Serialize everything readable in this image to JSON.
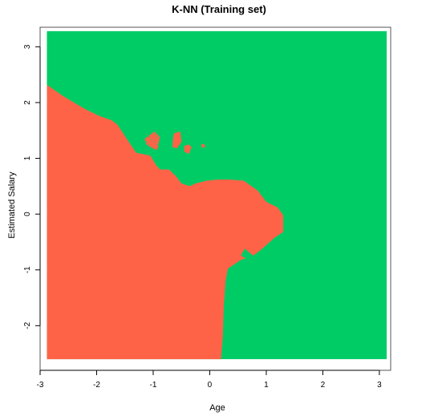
{
  "chart_data": {
    "type": "area",
    "title": "K-NN (Training set)",
    "xlabel": "Age",
    "ylabel": "Estimated Salary",
    "xlim": [
      -3,
      3.2
    ],
    "ylim": [
      -2.8,
      3.35
    ],
    "grid_extent": {
      "x": [
        -2.88,
        3.13
      ],
      "y": [
        -2.6,
        3.28
      ]
    },
    "xticks": [
      -3,
      -2,
      -1,
      0,
      1,
      2,
      3
    ],
    "yticks": [
      -2,
      -1,
      0,
      1,
      2,
      3
    ],
    "grid": false,
    "legend": "none",
    "colors": {
      "class_0": "#FF6347",
      "class_1": "#00CC66",
      "island_speckle": "#5FA85F"
    },
    "regions": [
      {
        "name": "class-0-region",
        "class": 0,
        "polygon": [
          [
            -2.88,
            2.32
          ],
          [
            -2.6,
            2.12
          ],
          [
            -2.2,
            1.88
          ],
          [
            -1.95,
            1.76
          ],
          [
            -1.73,
            1.68
          ],
          [
            -1.63,
            1.6
          ],
          [
            -1.45,
            1.32
          ],
          [
            -1.3,
            1.1
          ],
          [
            -1.05,
            1.05
          ],
          [
            -0.95,
            0.88
          ],
          [
            -0.88,
            0.8
          ],
          [
            -0.72,
            0.8
          ],
          [
            -0.6,
            0.68
          ],
          [
            -0.5,
            0.55
          ],
          [
            -0.35,
            0.5
          ],
          [
            -0.25,
            0.55
          ],
          [
            -0.05,
            0.6
          ],
          [
            0.15,
            0.62
          ],
          [
            0.35,
            0.62
          ],
          [
            0.6,
            0.6
          ],
          [
            0.85,
            0.42
          ],
          [
            1.0,
            0.22
          ],
          [
            1.2,
            0.12
          ],
          [
            1.3,
            -0.02
          ],
          [
            1.3,
            -0.32
          ],
          [
            1.15,
            -0.42
          ],
          [
            0.93,
            -0.62
          ],
          [
            0.75,
            -0.76
          ],
          [
            0.55,
            -0.82
          ],
          [
            0.32,
            -0.98
          ],
          [
            0.28,
            -1.2
          ],
          [
            0.25,
            -1.6
          ],
          [
            0.23,
            -2.2
          ],
          [
            0.2,
            -2.6
          ],
          [
            -2.88,
            -2.6
          ]
        ]
      },
      {
        "name": "class-1-notch",
        "class": 1,
        "polygon": [
          [
            0.62,
            -0.62
          ],
          [
            0.8,
            -0.77
          ],
          [
            0.72,
            -0.85
          ],
          [
            0.55,
            -0.74
          ]
        ]
      },
      {
        "name": "class-0-island-large",
        "class": 0,
        "polygon": [
          [
            -0.63,
            1.45
          ],
          [
            -0.52,
            1.48
          ],
          [
            -0.5,
            1.3
          ],
          [
            -0.58,
            1.18
          ],
          [
            -0.66,
            1.2
          ],
          [
            -0.65,
            1.35
          ]
        ]
      },
      {
        "name": "class-0-island-mid",
        "class": 0,
        "polygon": [
          [
            -0.45,
            1.22
          ],
          [
            -0.38,
            1.25
          ],
          [
            -0.32,
            1.2
          ],
          [
            -0.37,
            1.08
          ],
          [
            -0.45,
            1.12
          ]
        ]
      },
      {
        "name": "class-0-island-small",
        "class": 0,
        "polygon": [
          [
            -0.15,
            1.25
          ],
          [
            -0.1,
            1.26
          ],
          [
            -0.08,
            1.2
          ],
          [
            -0.14,
            1.19
          ]
        ]
      },
      {
        "name": "class-0-island-speckled",
        "class": 0,
        "polygon": [
          [
            -1.15,
            1.35
          ],
          [
            -0.98,
            1.48
          ],
          [
            -0.88,
            1.38
          ],
          [
            -0.93,
            1.15
          ],
          [
            -1.05,
            1.2
          ],
          [
            -1.12,
            1.25
          ]
        ]
      }
    ]
  }
}
